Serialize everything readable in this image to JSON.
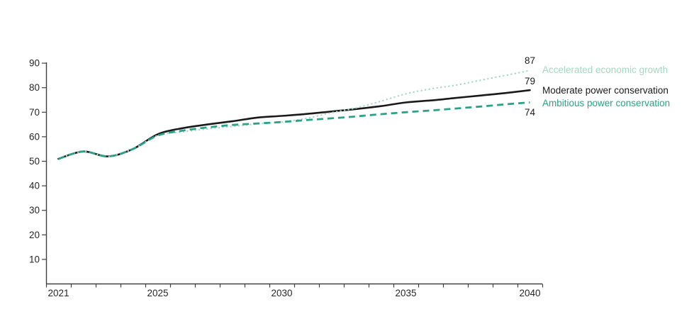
{
  "chart_data": {
    "type": "line",
    "title": "",
    "xlabel": "",
    "ylabel": "",
    "x": [
      2021,
      2022,
      2023,
      2024,
      2025,
      2026,
      2027,
      2028,
      2029,
      2030,
      2031,
      2032,
      2033,
      2034,
      2035,
      2036,
      2037,
      2038,
      2039,
      2040
    ],
    "x_tick_labels": [
      2021,
      2025,
      2030,
      2035,
      2040
    ],
    "y_ticks": [
      10,
      20,
      30,
      40,
      50,
      60,
      70,
      80,
      90
    ],
    "ylim": [
      0,
      90
    ],
    "grid": false,
    "legend_position": "right-of-line-ends",
    "background_color": "#ffffff",
    "axis_color": "#404040",
    "tick_label_color": "#262626",
    "series": [
      {
        "name": "Accelerated economic growth",
        "style": "dotted",
        "color": "#a5d7c1",
        "end_label": 87,
        "values": [
          51,
          54,
          52,
          55,
          60.5,
          62,
          63.2,
          64.2,
          65.2,
          66,
          67.5,
          69.8,
          71.8,
          74.5,
          77.5,
          79.5,
          81,
          83,
          85,
          87
        ]
      },
      {
        "name": "Moderate power conservation",
        "style": "solid",
        "color": "#1a1a1a",
        "end_label": 79,
        "values": [
          51,
          54,
          52,
          55,
          61,
          63.5,
          65,
          66.3,
          67.8,
          68.5,
          69.3,
          70.3,
          71.3,
          72.5,
          74,
          74.8,
          75.8,
          76.8,
          77.8,
          79
        ]
      },
      {
        "name": "Ambitious power conservation",
        "style": "dashed",
        "color": "#29a287",
        "end_label": 74,
        "values": [
          51,
          54,
          52,
          55,
          60.5,
          62.5,
          63.8,
          64.8,
          65.4,
          66,
          66.8,
          67.5,
          68.3,
          69.2,
          70,
          70.7,
          71.5,
          72.3,
          73.2,
          74
        ]
      }
    ]
  }
}
